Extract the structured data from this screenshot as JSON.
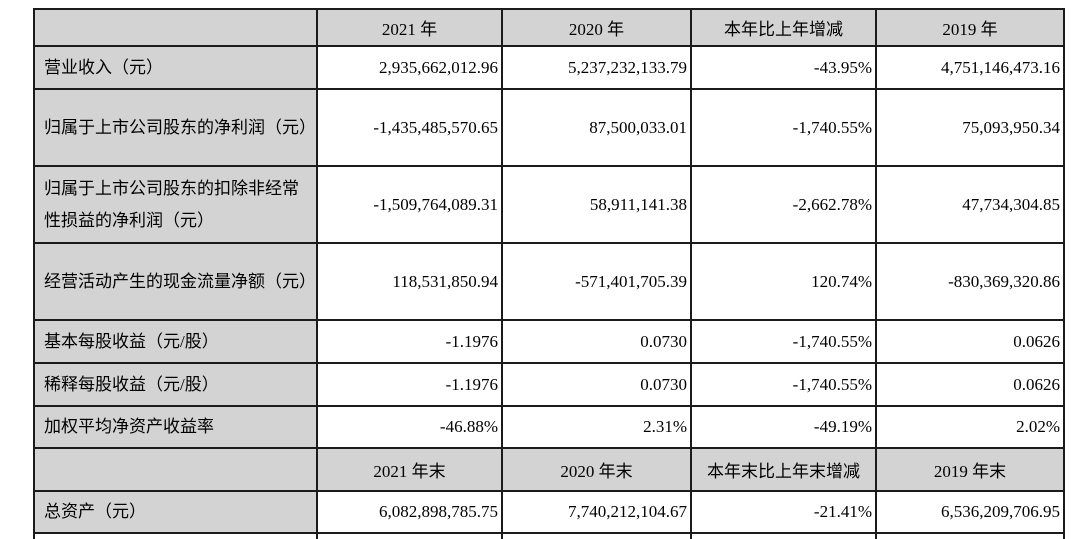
{
  "table": {
    "header_annual": {
      "blank": "",
      "cols": [
        "2021 年",
        "2020 年",
        "本年比上年增减",
        "2019 年"
      ]
    },
    "header_eoy": {
      "blank": "",
      "cols": [
        "2021 年末",
        "2020 年末",
        "本年末比上年末增减",
        "2019 年末"
      ]
    },
    "rows_annual": [
      {
        "label": "营业收入（元）",
        "values": [
          "2,935,662,012.96",
          "5,237,232,133.79",
          "-43.95%",
          "4,751,146,473.16"
        ]
      },
      {
        "label": "归属于上市公司股东的净利润（元）",
        "values": [
          "-1,435,485,570.65",
          "87,500,033.01",
          "-1,740.55%",
          "75,093,950.34"
        ]
      },
      {
        "label": "归属于上市公司股东的扣除非经常性损益的净利润（元）",
        "values": [
          "-1,509,764,089.31",
          "58,911,141.38",
          "-2,662.78%",
          "47,734,304.85"
        ]
      },
      {
        "label": "经营活动产生的现金流量净额（元）",
        "values": [
          "118,531,850.94",
          "-571,401,705.39",
          "120.74%",
          "-830,369,320.86"
        ]
      },
      {
        "label": "基本每股收益（元/股）",
        "values": [
          "-1.1976",
          "0.0730",
          "-1,740.55%",
          "0.0626"
        ]
      },
      {
        "label": "稀释每股收益（元/股）",
        "values": [
          "-1.1976",
          "0.0730",
          "-1,740.55%",
          "0.0626"
        ]
      },
      {
        "label": "加权平均净资产收益率",
        "values": [
          "-46.88%",
          "2.31%",
          "-49.19%",
          "2.02%"
        ]
      }
    ],
    "rows_eoy": [
      {
        "label": "总资产（元）",
        "values": [
          "6,082,898,785.75",
          "7,740,212,104.67",
          "-21.41%",
          "6,536,209,706.95"
        ]
      }
    ],
    "colors": {
      "header_bg": "#d3d3d3",
      "label_bg": "#d3d3d3",
      "cell_bg": "#ffffff",
      "border": "#1b1b1b",
      "text": "#000000"
    }
  }
}
